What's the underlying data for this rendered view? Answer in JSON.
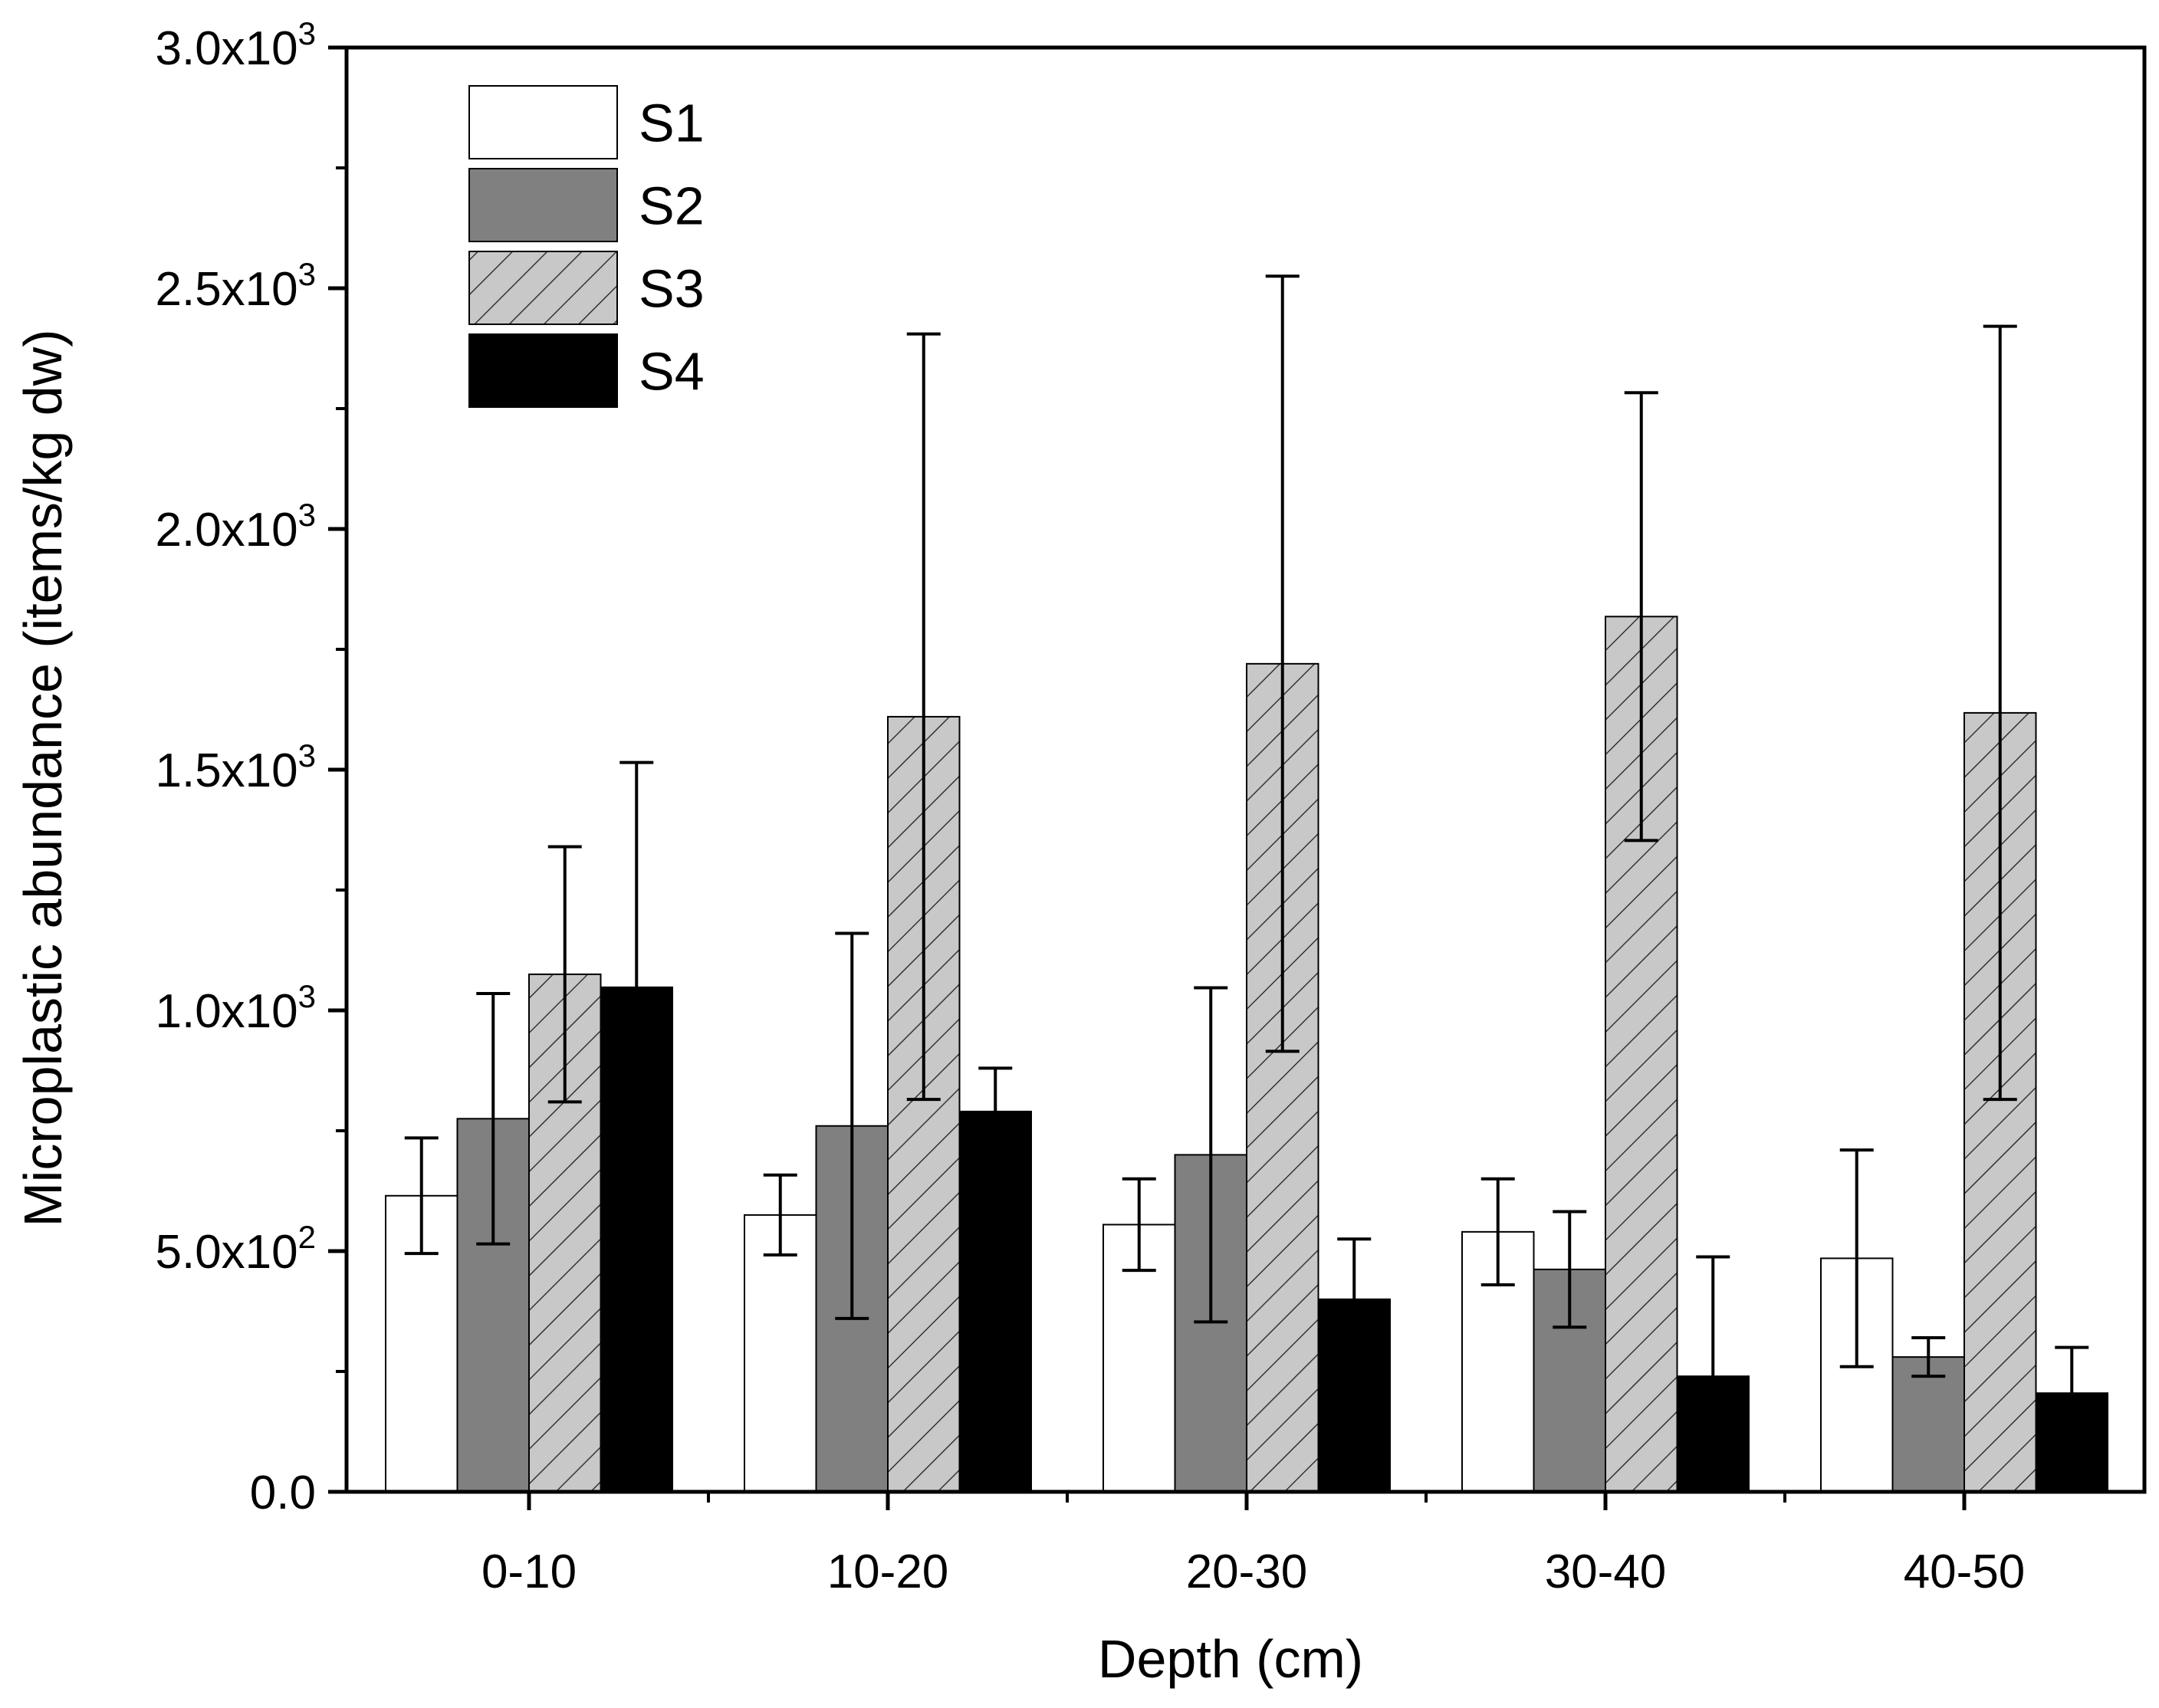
{
  "chart_data": {
    "type": "bar",
    "title": "",
    "xlabel": "Depth (cm)",
    "ylabel": "Microplastic abundance (items/kg dw)",
    "ylim": [
      0,
      3000
    ],
    "grid": false,
    "legend_position": "top-left",
    "categories": [
      "0-10",
      "10-20",
      "20-30",
      "30-40",
      "40-50"
    ],
    "y_ticks": [
      {
        "value": 0,
        "mantissa": "0.0",
        "exponent": ""
      },
      {
        "value": 500,
        "mantissa": "5.0x10",
        "exponent": "2"
      },
      {
        "value": 1000,
        "mantissa": "1.0x10",
        "exponent": "3"
      },
      {
        "value": 1500,
        "mantissa": "1.5x10",
        "exponent": "3"
      },
      {
        "value": 2000,
        "mantissa": "2.0x10",
        "exponent": "3"
      },
      {
        "value": 2500,
        "mantissa": "2.5x10",
        "exponent": "3"
      },
      {
        "value": 3000,
        "mantissa": "3.0x10",
        "exponent": "3"
      }
    ],
    "series": [
      {
        "name": "S1",
        "style": "white",
        "values": [
          615,
          575,
          555,
          540,
          485
        ],
        "errors": [
          120,
          83,
          95,
          110,
          225
        ]
      },
      {
        "name": "S2",
        "style": "gray",
        "values": [
          775,
          760,
          700,
          462,
          280
        ],
        "errors": [
          260,
          400,
          347,
          120,
          40
        ]
      },
      {
        "name": "S3",
        "style": "hatched",
        "values": [
          1075,
          1610,
          1720,
          1818,
          1618
        ],
        "errors": [
          265,
          795,
          805,
          465,
          803
        ]
      },
      {
        "name": "S4",
        "style": "black",
        "values": [
          1048,
          790,
          400,
          240,
          205
        ],
        "errors": [
          467,
          90,
          125,
          248,
          95
        ]
      }
    ],
    "colors": {
      "S1": "#ffffff",
      "S2": "#808080",
      "S3": "#c8c8c8",
      "S4": "#000000",
      "axis": "#000000"
    }
  }
}
